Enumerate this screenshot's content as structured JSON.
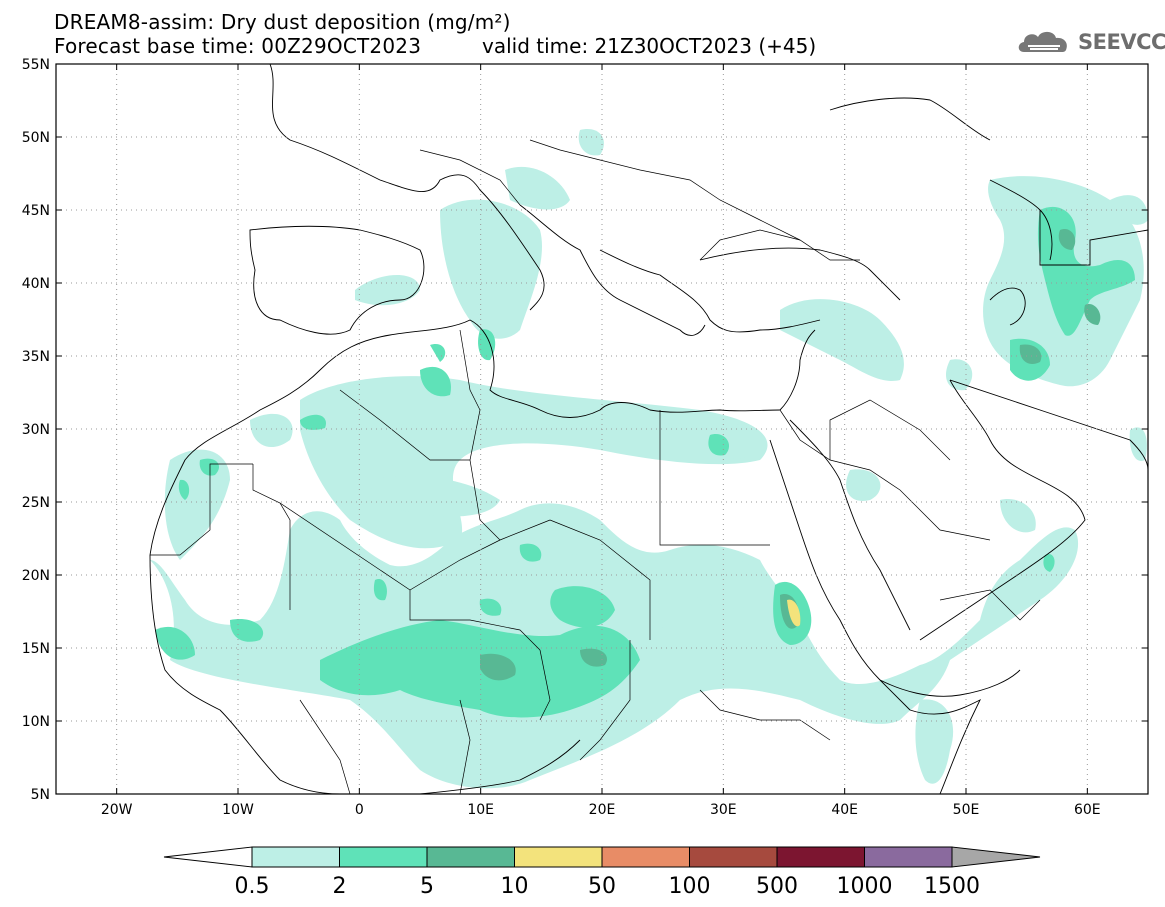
{
  "title": {
    "line1": "DREAM8-assim: Dry dust deposition (mg/m²)",
    "base_time": "Forecast base time: 00Z29OCT2023",
    "valid_time": "valid time: 21Z30OCT2023 (+45)"
  },
  "logo": {
    "text": "SEEVCCC",
    "icon": "cloud-icon"
  },
  "map": {
    "projection": "lat-lon",
    "lon_range": [
      -25,
      65
    ],
    "lat_range": [
      5,
      55
    ],
    "lon_ticks": [
      "20W",
      "10W",
      "0",
      "10E",
      "20E",
      "30E",
      "40E",
      "50E",
      "60E"
    ],
    "lat_ticks": [
      "5N",
      "10N",
      "15N",
      "20N",
      "25N",
      "30N",
      "35N",
      "40N",
      "45N",
      "50N",
      "55N"
    ],
    "grid": "dotted"
  },
  "colorbar": {
    "labels": [
      "0.5",
      "2",
      "5",
      "10",
      "50",
      "100",
      "500",
      "1000",
      "1500"
    ],
    "colors": [
      "#ffffff",
      "#bdefe6",
      "#5fe2b8",
      "#58b894",
      "#f3e37c",
      "#e88c66",
      "#a64a3e",
      "#7c1530",
      "#8a6a9e",
      "#a7a7a7"
    ]
  }
}
